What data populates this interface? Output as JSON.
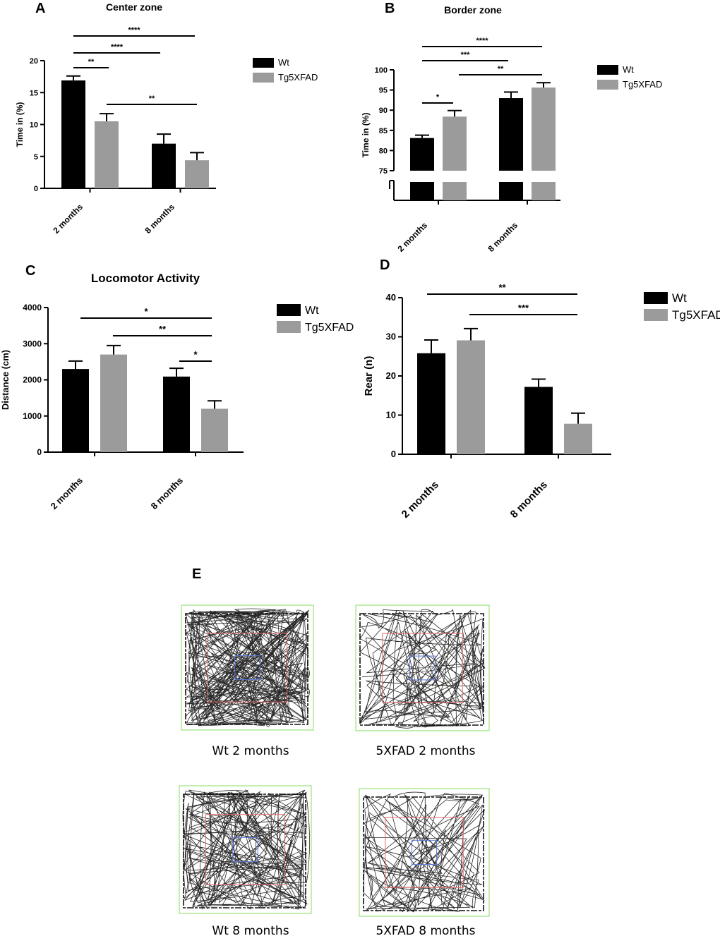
{
  "panel_e": {
    "letter": "E",
    "captions": [
      "Wt 2 months",
      "5XFAD 2 months",
      "Wt 8 months",
      "5XFAD 8 months"
    ],
    "colors": {
      "arena": "#99e27a",
      "center": "#e56a6a",
      "inner": "#5a78e0",
      "path": "#111111"
    }
  },
  "chart_data": [
    {
      "type": "bar",
      "letter": "A",
      "title": "Center zone",
      "xlabel": "",
      "ylabel": "Time in (%)",
      "categories": [
        "2 months",
        "8 months"
      ],
      "ylim": [
        0,
        20
      ],
      "yticks": [
        0,
        5,
        10,
        15,
        20
      ],
      "series": [
        {
          "name": "Wt",
          "values": [
            16.9,
            7.0
          ],
          "errors": [
            0.7,
            1.5
          ],
          "color": "#000000"
        },
        {
          "name": "Tg5XFAD",
          "values": [
            10.5,
            4.4
          ],
          "errors": [
            1.2,
            1.2
          ],
          "color": "#9b9b9b"
        }
      ],
      "significance": [
        {
          "label": "****",
          "from": [
            0,
            0
          ],
          "to": [
            1,
            0
          ]
        },
        {
          "label": "****",
          "from": [
            0,
            0
          ],
          "to": [
            0,
            1
          ]
        },
        {
          "label": "**",
          "from": [
            0,
            0
          ],
          "to": [
            1,
            0
          ]
        },
        {
          "label": "**",
          "from": [
            1,
            0
          ],
          "to": [
            1,
            1
          ]
        }
      ]
    },
    {
      "type": "bar",
      "letter": "B",
      "title": "Border zone",
      "xlabel": "",
      "ylabel": "Time in (%)",
      "categories": [
        "2 months",
        "8 months"
      ],
      "ylim": [
        75,
        100
      ],
      "yticks": [
        75,
        80,
        85,
        90,
        95,
        100
      ],
      "axis_break": true,
      "series": [
        {
          "name": "Wt",
          "values": [
            83.1,
            93.0
          ],
          "errors": [
            0.7,
            1.5
          ],
          "color": "#000000"
        },
        {
          "name": "Tg5XFAD",
          "values": [
            88.4,
            95.6
          ],
          "errors": [
            1.5,
            1.2
          ],
          "color": "#9b9b9b"
        }
      ],
      "significance": [
        {
          "label": "****",
          "from": [
            0,
            0
          ],
          "to": [
            1,
            1
          ]
        },
        {
          "label": "***",
          "from": [
            0,
            0
          ],
          "to": [
            1,
            0
          ]
        },
        {
          "label": "**",
          "from": [
            0,
            1
          ],
          "to": [
            1,
            1
          ]
        },
        {
          "label": "*",
          "from": [
            0,
            0
          ],
          "to": [
            0,
            1
          ]
        }
      ]
    },
    {
      "type": "bar",
      "letter": "C",
      "title": "Locomotor Activity",
      "xlabel": "",
      "ylabel": "Distance (cm)",
      "categories": [
        "2 months",
        "8 months"
      ],
      "ylim": [
        0,
        4000
      ],
      "yticks": [
        0,
        1000,
        2000,
        3000,
        4000
      ],
      "series": [
        {
          "name": "Wt",
          "values": [
            2300,
            2090
          ],
          "errors": [
            220,
            230
          ],
          "color": "#000000"
        },
        {
          "name": "Tg5XFAD",
          "values": [
            2700,
            1200
          ],
          "errors": [
            250,
            220
          ],
          "color": "#9b9b9b"
        }
      ],
      "significance": [
        {
          "label": "*",
          "from": [
            0,
            0
          ],
          "to": [
            1,
            1
          ]
        },
        {
          "label": "**",
          "from": [
            0,
            1
          ],
          "to": [
            1,
            1
          ]
        },
        {
          "label": "*",
          "from": [
            1,
            0
          ],
          "to": [
            1,
            1
          ]
        }
      ]
    },
    {
      "type": "bar",
      "letter": "D",
      "title": "",
      "xlabel": "",
      "ylabel": "Rear (n)",
      "categories": [
        "2 months",
        "8 months"
      ],
      "ylim": [
        0,
        40
      ],
      "yticks": [
        0,
        10,
        20,
        30,
        40
      ],
      "series": [
        {
          "name": "Wt",
          "values": [
            25.8,
            17.2
          ],
          "errors": [
            3.4,
            2.0
          ],
          "color": "#000000"
        },
        {
          "name": "Tg5XFAD",
          "values": [
            29.1,
            7.8
          ],
          "errors": [
            3.0,
            2.7
          ],
          "color": "#9b9b9b"
        }
      ],
      "significance": [
        {
          "label": "**",
          "from": [
            0,
            0
          ],
          "to": [
            1,
            1
          ]
        },
        {
          "label": "***",
          "from": [
            0,
            1
          ],
          "to": [
            1,
            1
          ]
        }
      ]
    }
  ]
}
